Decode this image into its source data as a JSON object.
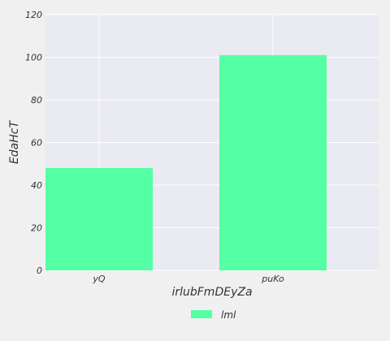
{
  "chart_data": {
    "type": "bar",
    "categories": [
      "yQ",
      "puKo"
    ],
    "series": [
      {
        "name": "lml",
        "values": [
          48,
          101
        ],
        "color": "#55ffa3"
      }
    ],
    "xlabel": "irlubFmDEyZa",
    "ylabel": "EdaHcT",
    "ylim": [
      0,
      120
    ],
    "yticks": [
      0,
      20,
      40,
      60,
      80,
      100,
      120
    ],
    "grid": true,
    "legend_position": "bottom-center",
    "colors": {
      "plot_background": "#eaeaf2",
      "figure_background": "#f0f0f0",
      "grid": "#ffffff"
    }
  }
}
